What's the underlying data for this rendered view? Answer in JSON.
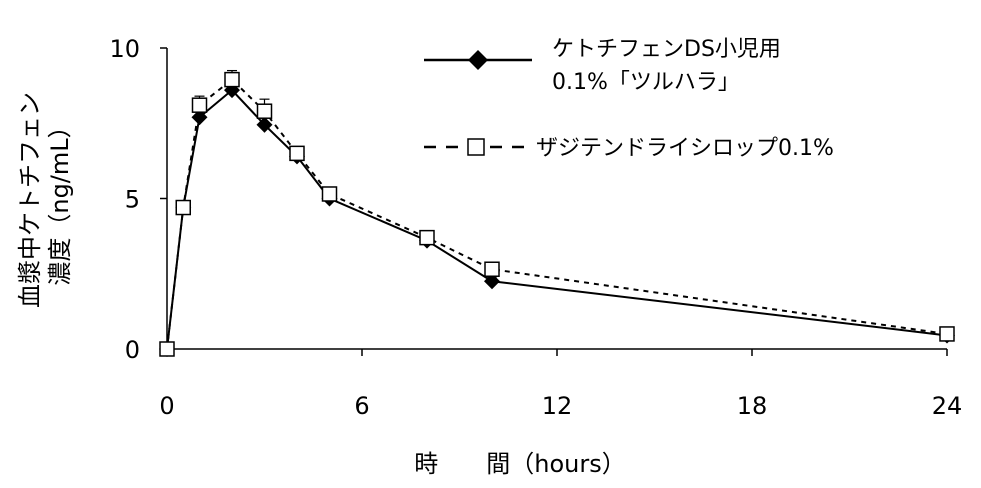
{
  "chart_data": {
    "type": "line",
    "xlabel": "時　　間（hours）",
    "ylabel_line1": "血漿中ケトチフェン",
    "ylabel_line2": "濃度（ng/mL）",
    "xlim": [
      0,
      24
    ],
    "ylim": [
      0,
      10
    ],
    "x_ticks": [
      "0",
      "6",
      "12",
      "18",
      "24"
    ],
    "y_ticks": [
      "0",
      "5",
      "10"
    ],
    "grid": false,
    "legend_position": "top-right",
    "series": [
      {
        "name_line1": "ケトチフェンDS小児用",
        "name_line2": "0.1%「ツルハラ」",
        "style": "solid",
        "marker": "filled-diamond",
        "x": [
          0,
          0.5,
          1,
          2,
          3,
          4,
          5,
          8,
          10,
          24
        ],
        "values": [
          0,
          4.7,
          7.7,
          8.6,
          7.45,
          6.4,
          5.0,
          3.6,
          2.25,
          0.45
        ],
        "errors": [
          0,
          0.15,
          0.25,
          0.2,
          0.25,
          0.15,
          0.2,
          0.1,
          0.15,
          0.05
        ]
      },
      {
        "name_line1": "ザジテンドライシロップ0.1%",
        "style": "dashed",
        "marker": "open-square",
        "x": [
          0,
          0.5,
          1,
          2,
          3,
          4,
          5,
          8,
          10,
          24
        ],
        "values": [
          0,
          4.7,
          8.1,
          8.95,
          7.9,
          6.5,
          5.15,
          3.7,
          2.65,
          0.5
        ],
        "errors": [
          0,
          0.15,
          0.3,
          0.3,
          0.4,
          0.15,
          0.2,
          0.1,
          0.1,
          0.05
        ]
      }
    ]
  }
}
